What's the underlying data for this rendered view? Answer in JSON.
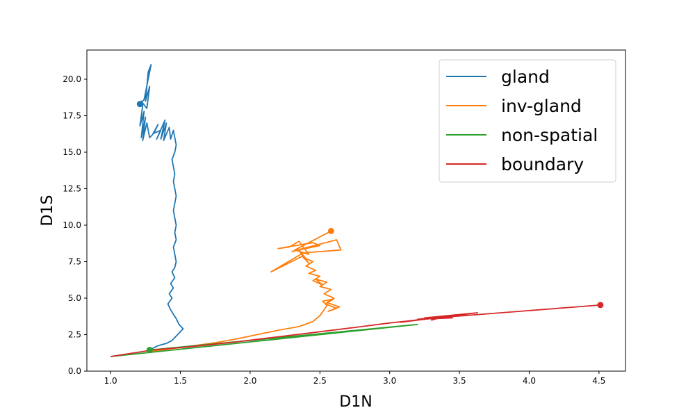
{
  "chart_data": {
    "type": "line",
    "xlabel": "D1N",
    "ylabel": "D1S",
    "xlim": [
      0.83,
      4.69
    ],
    "ylim": [
      0,
      22
    ],
    "xticks": [
      "1.0",
      "1.5",
      "2.0",
      "2.5",
      "3.0",
      "3.5",
      "4.0",
      "4.5"
    ],
    "yticks": [
      "0.0",
      "2.5",
      "5.0",
      "7.5",
      "10.0",
      "12.5",
      "15.0",
      "17.5",
      "20.0"
    ],
    "legend_position": "top-right",
    "series": [
      {
        "name": "gland",
        "color": "#1f77b4",
        "x": [
          1.28,
          1.3,
          1.33,
          1.36,
          1.4,
          1.44,
          1.46,
          1.48,
          1.5,
          1.52,
          1.49,
          1.47,
          1.45,
          1.43,
          1.41,
          1.44,
          1.42,
          1.45,
          1.43,
          1.46,
          1.44,
          1.46,
          1.47,
          1.46,
          1.45,
          1.47,
          1.46,
          1.47,
          1.46,
          1.45,
          1.46,
          1.47,
          1.46,
          1.45,
          1.46,
          1.45,
          1.44,
          1.46,
          1.47,
          1.46,
          1.45,
          1.46,
          1.45,
          1.43,
          1.42,
          1.38,
          1.4,
          1.36,
          1.39,
          1.33,
          1.36,
          1.31,
          1.34,
          1.3,
          1.28,
          1.26,
          1.23,
          1.25,
          1.22,
          1.24,
          1.21,
          1.23,
          1.22,
          1.26,
          1.28,
          1.25,
          1.27,
          1.29,
          1.24,
          1.21
        ],
        "y": [
          1.45,
          1.55,
          1.7,
          1.8,
          1.9,
          2.1,
          2.3,
          2.5,
          2.7,
          2.9,
          3.2,
          3.6,
          3.9,
          4.2,
          4.6,
          5.0,
          5.3,
          5.7,
          6.0,
          6.4,
          6.8,
          7.1,
          7.5,
          8.0,
          8.5,
          9.0,
          9.5,
          10.0,
          10.5,
          11.0,
          11.5,
          12.0,
          12.5,
          13.0,
          13.5,
          14.0,
          14.5,
          15.0,
          15.5,
          16.0,
          16.5,
          16.0,
          16.5,
          15.9,
          16.7,
          15.8,
          17.0,
          15.9,
          17.2,
          15.9,
          16.5,
          16.3,
          16.9,
          16.2,
          16.0,
          17.0,
          15.8,
          17.4,
          16.0,
          17.8,
          16.8,
          18.2,
          18.5,
          18.0,
          19.5,
          18.5,
          20.5,
          21.0,
          18.6,
          18.3
        ]
      },
      {
        "name": "inv-gland",
        "color": "#ff7f0e",
        "x": [
          1.29,
          1.45,
          1.6,
          1.75,
          1.9,
          2.05,
          2.2,
          2.35,
          2.45,
          2.5,
          2.53,
          2.55,
          2.52,
          2.6,
          2.54,
          2.62,
          2.56,
          2.64,
          2.55,
          2.6,
          2.53,
          2.58,
          2.5,
          2.55,
          2.47,
          2.52,
          2.45,
          2.5,
          2.42,
          2.47,
          2.4,
          2.45,
          2.38,
          2.42,
          2.36,
          2.4,
          2.35,
          2.38,
          2.15,
          2.38,
          2.65,
          2.62,
          2.3,
          2.5,
          2.45,
          2.2,
          2.28,
          2.35,
          2.42,
          2.32,
          2.58
        ],
        "y": [
          1.35,
          1.55,
          1.75,
          1.95,
          2.2,
          2.5,
          2.8,
          3.05,
          3.4,
          3.8,
          4.2,
          4.5,
          4.8,
          4.95,
          4.6,
          4.3,
          4.1,
          4.4,
          4.7,
          5.0,
          5.3,
          5.6,
          5.8,
          6.1,
          6.3,
          5.9,
          6.2,
          6.5,
          6.7,
          6.9,
          7.2,
          7.5,
          7.8,
          7.4,
          8.1,
          7.7,
          8.3,
          7.9,
          6.8,
          8.1,
          8.3,
          9.0,
          8.2,
          8.6,
          8.8,
          8.4,
          8.5,
          8.9,
          8.0,
          8.3,
          9.6
        ]
      },
      {
        "name": "non-spatial",
        "color": "#2ca02c",
        "x": [
          1.0,
          1.2,
          1.4,
          1.6,
          1.8,
          2.0,
          2.2,
          2.4,
          2.6,
          2.8,
          3.0,
          3.2,
          1.28
        ],
        "y": [
          1.0,
          1.2,
          1.4,
          1.6,
          1.8,
          2.0,
          2.2,
          2.4,
          2.6,
          2.8,
          3.0,
          3.2,
          1.45
        ]
      },
      {
        "name": "boundary",
        "color": "#d62728",
        "x": [
          1.0,
          1.3,
          1.6,
          1.9,
          2.2,
          2.5,
          2.8,
          3.0,
          3.2,
          3.3,
          3.35,
          3.3,
          3.4,
          3.2,
          3.45,
          3.1,
          3.5,
          3.3,
          3.55,
          3.25,
          3.63,
          3.08,
          3.36,
          3.45,
          3.2,
          4.51
        ],
        "y": [
          1.0,
          1.45,
          1.7,
          2.0,
          2.35,
          2.7,
          3.05,
          3.3,
          3.5,
          3.6,
          3.7,
          3.5,
          3.75,
          3.55,
          3.8,
          3.4,
          3.85,
          3.6,
          3.9,
          3.65,
          4.0,
          3.35,
          3.7,
          3.65,
          3.55,
          4.53
        ]
      }
    ],
    "end_markers": [
      {
        "series": "gland",
        "x": 1.21,
        "y": 18.3
      },
      {
        "series": "inv-gland",
        "x": 2.58,
        "y": 9.6
      },
      {
        "series": "non-spatial",
        "x": 1.28,
        "y": 1.45
      },
      {
        "series": "boundary",
        "x": 4.51,
        "y": 4.53
      }
    ]
  }
}
